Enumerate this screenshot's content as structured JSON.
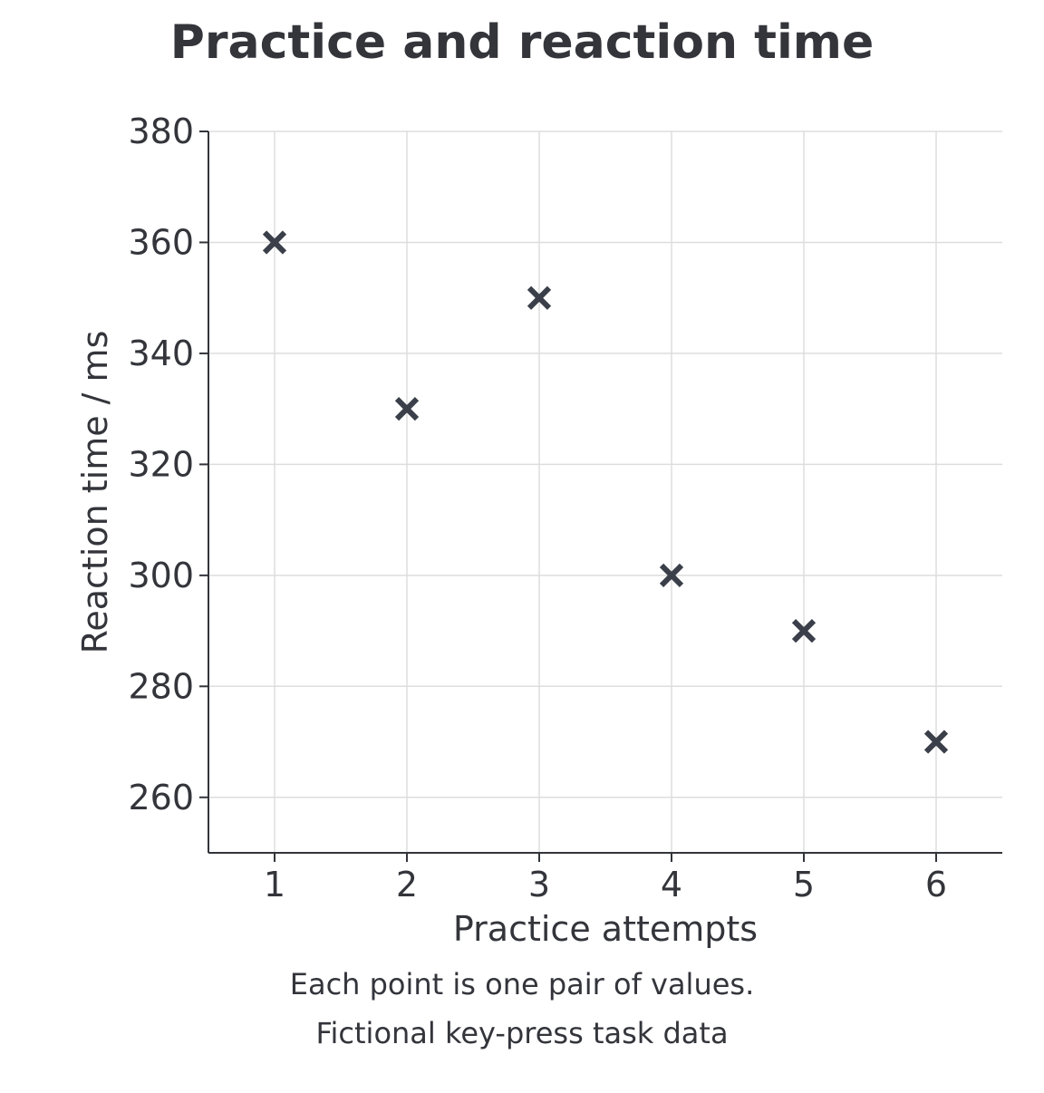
{
  "chart_data": {
    "type": "scatter",
    "title": "Practice and reaction time",
    "xlabel": "Practice attempts",
    "ylabel": "Reaction time / ms",
    "xlim": [
      0.5,
      6.5
    ],
    "ylim": [
      250,
      380
    ],
    "xticks": [
      1,
      2,
      3,
      4,
      5,
      6
    ],
    "yticks": [
      260,
      280,
      300,
      320,
      340,
      360,
      380
    ],
    "grid": true,
    "marker": "x",
    "marker_color": "#3a3f4a",
    "points": [
      {
        "x": 1,
        "y": 360
      },
      {
        "x": 2,
        "y": 330
      },
      {
        "x": 3,
        "y": 350
      },
      {
        "x": 4,
        "y": 300
      },
      {
        "x": 5,
        "y": 290
      },
      {
        "x": 6,
        "y": 270
      }
    ],
    "caption_lines": [
      "Each point is one pair of values.",
      "Fictional key-press task data"
    ]
  }
}
